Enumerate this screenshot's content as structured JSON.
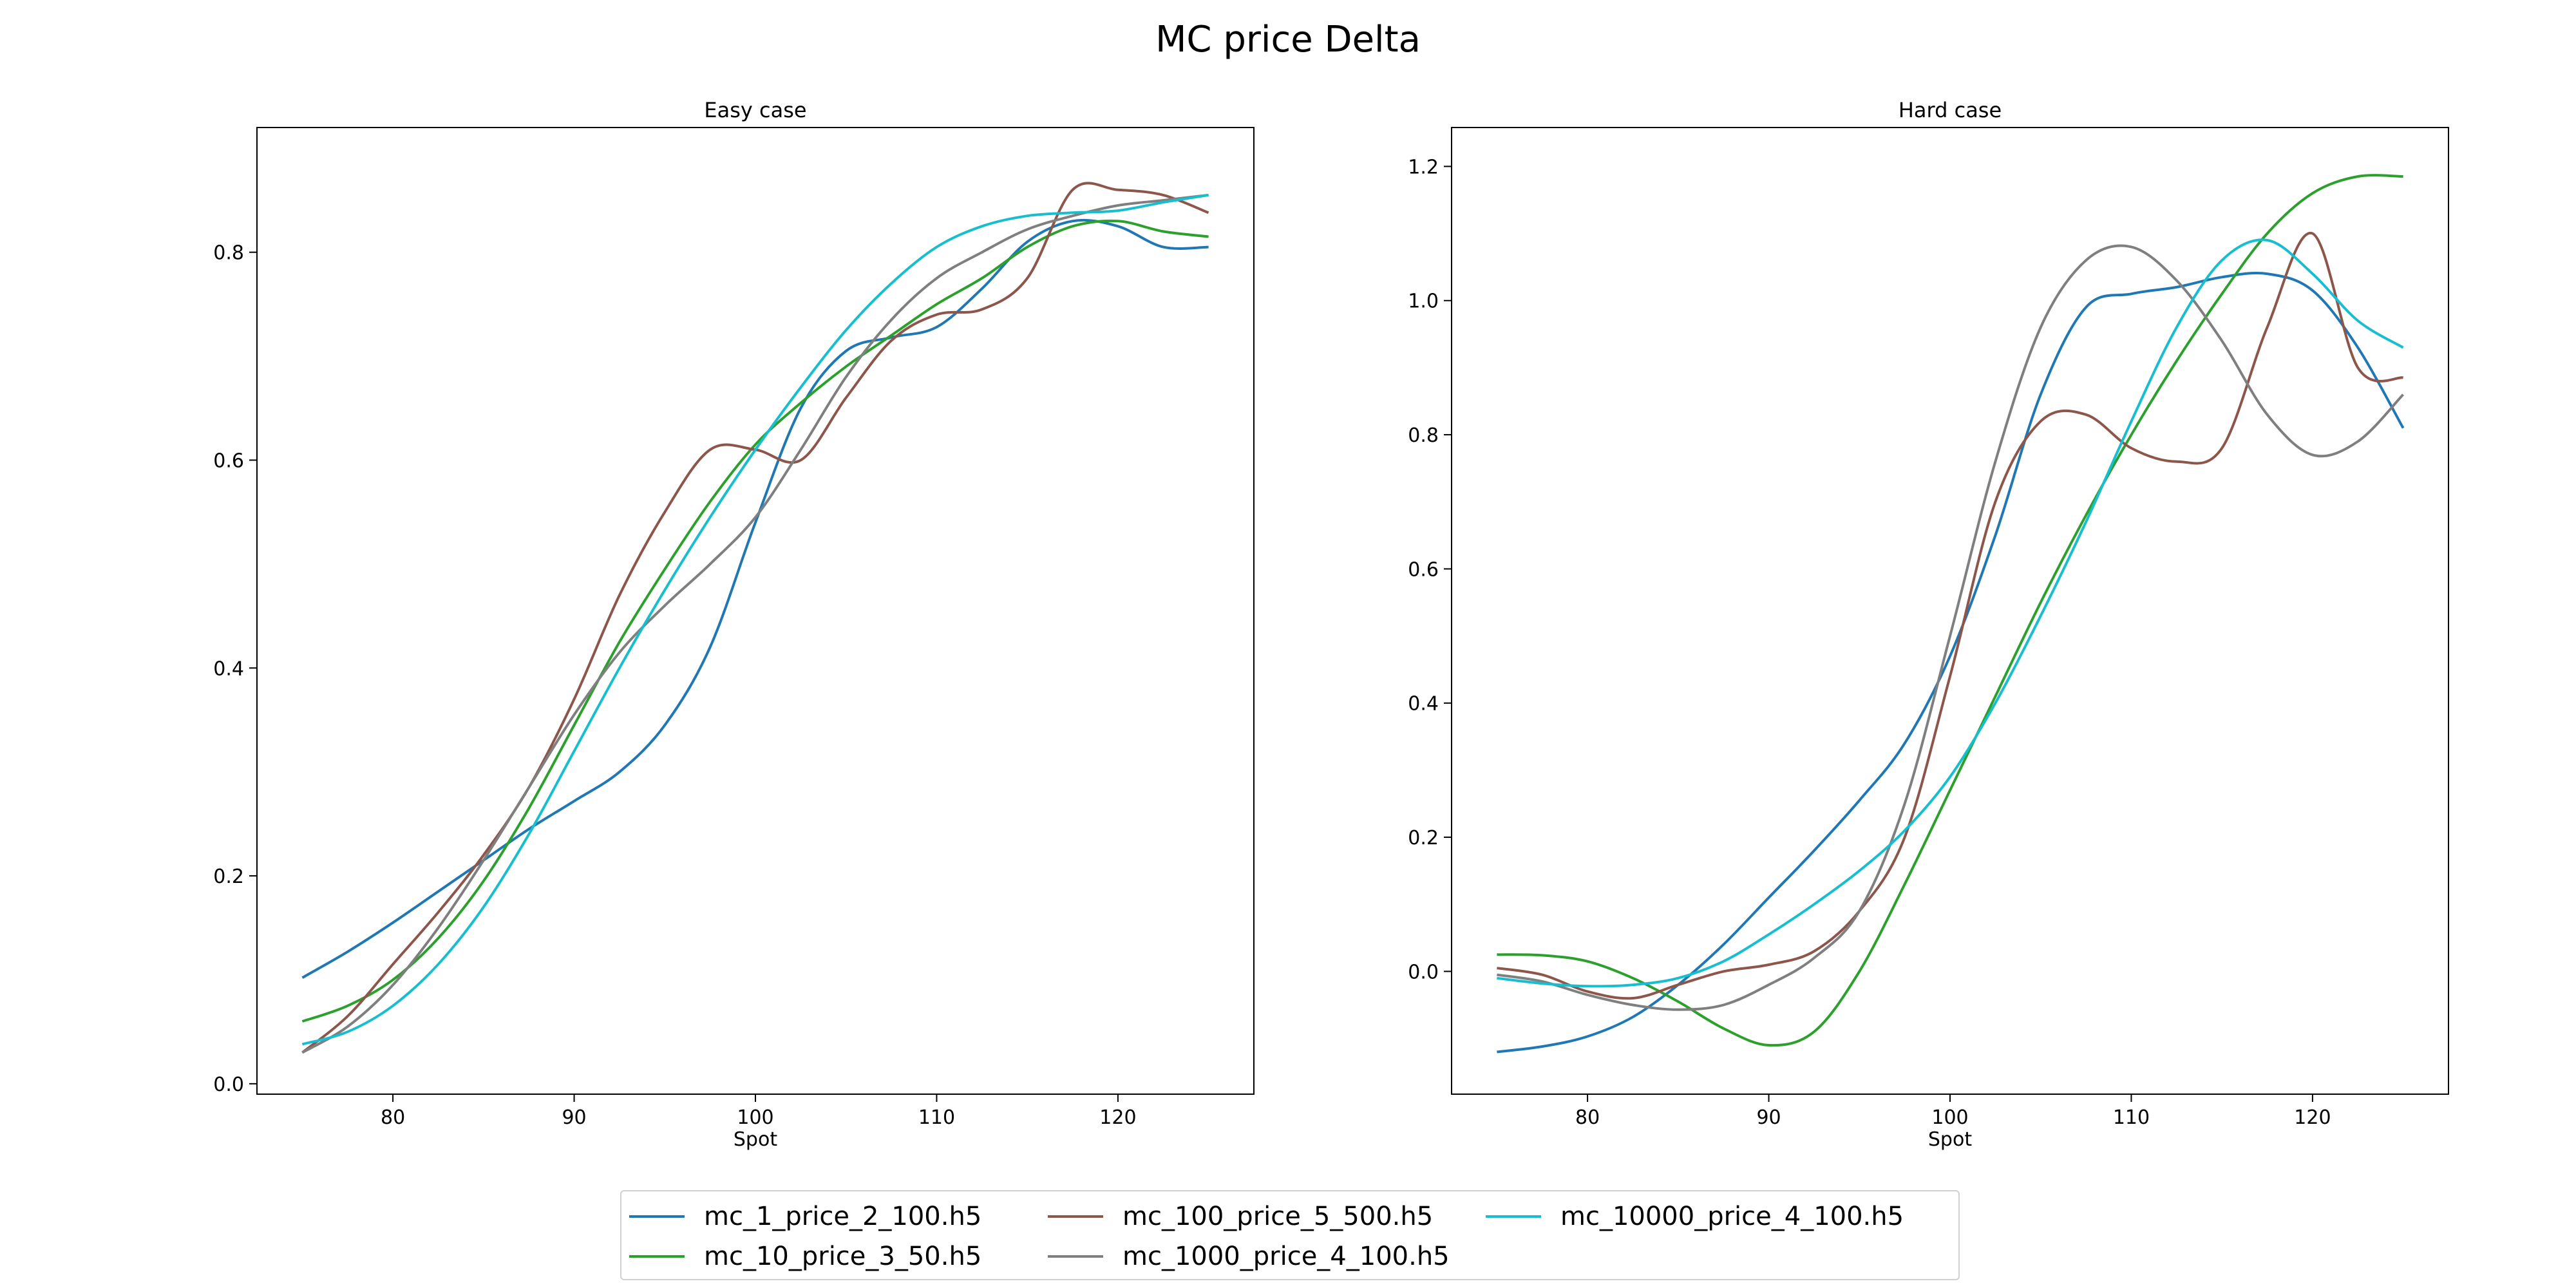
{
  "figure": {
    "title": "MC price Delta"
  },
  "legend": {
    "placement": "lower-center",
    "entries": [
      {
        "name": "mc_1_price_2_100.h5",
        "color": "#1f77b4"
      },
      {
        "name": "mc_10_price_3_50.h5",
        "color": "#2ca02c"
      },
      {
        "name": "mc_100_price_5_500.h5",
        "color": "#8c564b"
      },
      {
        "name": "mc_1000_price_4_100.h5",
        "color": "#7f7f7f"
      },
      {
        "name": "mc_10000_price_4_100.h5",
        "color": "#17becf"
      }
    ]
  },
  "chart_data": [
    {
      "type": "line",
      "title": "Easy case",
      "xlabel": "Spot",
      "ylabel": "",
      "xlim": [
        72.5,
        127.5
      ],
      "ylim": [
        -0.01,
        0.92
      ],
      "xticks": [
        80,
        90,
        100,
        110,
        120
      ],
      "yticks": [
        0.0,
        0.2,
        0.4,
        0.6,
        0.8
      ],
      "ytick_labels": [
        "0.0",
        "0.2",
        "0.4",
        "0.6",
        "0.8"
      ],
      "grid": false,
      "x": [
        75,
        77.5,
        80,
        82.5,
        85,
        87.5,
        90,
        92.5,
        95,
        97.5,
        100,
        102.5,
        105,
        107.5,
        110,
        112.5,
        115,
        117.5,
        120,
        122.5,
        125
      ],
      "series": [
        {
          "name": "mc_1_price_2_100.h5",
          "values": [
            0.102,
            0.127,
            0.155,
            0.185,
            0.215,
            0.245,
            0.272,
            0.3,
            0.345,
            0.42,
            0.54,
            0.65,
            0.705,
            0.718,
            0.728,
            0.765,
            0.81,
            0.83,
            0.825,
            0.805,
            0.805
          ]
        },
        {
          "name": "mc_10_price_3_50.h5",
          "values": [
            0.06,
            0.075,
            0.1,
            0.14,
            0.195,
            0.265,
            0.345,
            0.425,
            0.495,
            0.56,
            0.615,
            0.655,
            0.69,
            0.72,
            0.75,
            0.775,
            0.805,
            0.825,
            0.83,
            0.82,
            0.815
          ]
        },
        {
          "name": "mc_100_price_5_500.h5",
          "values": [
            0.03,
            0.065,
            0.115,
            0.165,
            0.22,
            0.285,
            0.37,
            0.47,
            0.55,
            0.61,
            0.61,
            0.6,
            0.66,
            0.715,
            0.74,
            0.745,
            0.775,
            0.86,
            0.86,
            0.855,
            0.838
          ]
        },
        {
          "name": "mc_1000_price_4_100.h5",
          "values": [
            0.03,
            0.055,
            0.095,
            0.15,
            0.215,
            0.285,
            0.355,
            0.415,
            0.46,
            0.5,
            0.545,
            0.61,
            0.68,
            0.735,
            0.775,
            0.8,
            0.822,
            0.835,
            0.845,
            0.85,
            0.855
          ]
        },
        {
          "name": "mc_10000_price_4_100.h5",
          "values": [
            0.038,
            0.05,
            0.075,
            0.115,
            0.17,
            0.24,
            0.32,
            0.4,
            0.475,
            0.545,
            0.61,
            0.67,
            0.725,
            0.77,
            0.805,
            0.825,
            0.835,
            0.838,
            0.84,
            0.848,
            0.855
          ]
        }
      ]
    },
    {
      "type": "line",
      "title": "Hard case",
      "xlabel": "Spot",
      "ylabel": "",
      "xlim": [
        72.5,
        127.5
      ],
      "ylim": [
        -0.183,
        1.258
      ],
      "xticks": [
        80,
        90,
        100,
        110,
        120
      ],
      "yticks": [
        0.0,
        0.2,
        0.4,
        0.6,
        0.8,
        1.0,
        1.2
      ],
      "ytick_labels": [
        "0.0",
        "0.2",
        "0.4",
        "0.6",
        "0.8",
        "1.0",
        "1.2"
      ],
      "grid": false,
      "x": [
        75,
        77.5,
        80,
        82.5,
        85,
        87.5,
        90,
        92.5,
        95,
        97.5,
        100,
        102.5,
        105,
        107.5,
        110,
        112.5,
        115,
        117.5,
        120,
        122.5,
        125
      ],
      "series": [
        {
          "name": "mc_1_price_2_100.h5",
          "values": [
            -0.12,
            -0.112,
            -0.097,
            -0.068,
            -0.02,
            0.04,
            0.11,
            0.18,
            0.255,
            0.34,
            0.47,
            0.65,
            0.86,
            0.99,
            1.01,
            1.02,
            1.035,
            1.04,
            1.015,
            0.93,
            0.81
          ]
        },
        {
          "name": "mc_10_price_3_50.h5",
          "values": [
            0.025,
            0.024,
            0.015,
            -0.01,
            -0.045,
            -0.085,
            -0.11,
            -0.09,
            0.0,
            0.13,
            0.27,
            0.41,
            0.55,
            0.68,
            0.8,
            0.91,
            1.01,
            1.1,
            1.16,
            1.185,
            1.185
          ]
        },
        {
          "name": "mc_100_price_5_500.h5",
          "values": [
            0.005,
            -0.005,
            -0.03,
            -0.04,
            -0.02,
            0.0,
            0.01,
            0.03,
            0.09,
            0.2,
            0.44,
            0.7,
            0.82,
            0.83,
            0.78,
            0.76,
            0.78,
            0.96,
            1.1,
            0.9,
            0.885
          ]
        },
        {
          "name": "mc_1000_price_4_100.h5",
          "values": [
            -0.005,
            -0.015,
            -0.035,
            -0.05,
            -0.057,
            -0.05,
            -0.02,
            0.02,
            0.09,
            0.25,
            0.5,
            0.76,
            0.96,
            1.06,
            1.08,
            1.03,
            0.94,
            0.83,
            0.77,
            0.79,
            0.86
          ]
        },
        {
          "name": "mc_10000_price_4_100.h5",
          "values": [
            -0.01,
            -0.018,
            -0.022,
            -0.02,
            -0.01,
            0.015,
            0.055,
            0.1,
            0.15,
            0.21,
            0.29,
            0.4,
            0.53,
            0.67,
            0.82,
            0.96,
            1.06,
            1.09,
            1.04,
            0.97,
            0.93
          ]
        }
      ]
    }
  ]
}
